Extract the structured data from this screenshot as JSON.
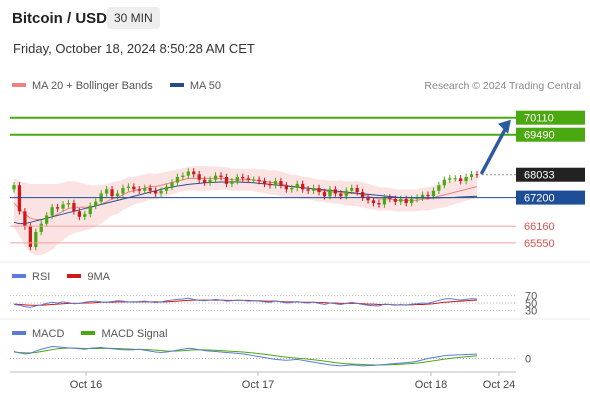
{
  "header": {
    "title": "Bitcoin / USD",
    "timeframe": "30 MIN",
    "datetime": "Friday, October 18, 2024 8:50:28 AM CET",
    "credit": "Research © 2024 Trading Central"
  },
  "colors": {
    "bollinger": "#f08080",
    "bollinger_band_fill": "#fbd9d9",
    "ma50": "#2b4c8c",
    "resistance": "#4aa810",
    "support": "#e35050",
    "pivot": "#1f4e99",
    "current": "#222222",
    "arrow": "#2c5aa0",
    "rsi": "#5b7bd5",
    "rsi_ma": "#d01818",
    "macd": "#5b7bd5",
    "macd_signal": "#4aa810",
    "candle_up": "#4aa810",
    "candle_down": "#d01818"
  },
  "chart_data": [
    {
      "type": "candlestick",
      "legend": [
        {
          "name": "MA 20 + Bollinger Bands",
          "color": "#f08080"
        },
        {
          "name": "MA 50",
          "color": "#2b4c8c"
        }
      ],
      "legend_placement": "top-left",
      "x_ticks": [
        "Oct 16",
        "Oct 17",
        "Oct 18",
        "Oct 24"
      ],
      "ylim": [
        65000,
        70900
      ],
      "levels": [
        {
          "value": 70110,
          "label": "70110",
          "kind": "resistance"
        },
        {
          "value": 69490,
          "label": "69490",
          "kind": "resistance"
        },
        {
          "value": 68033,
          "label": "68033",
          "kind": "current"
        },
        {
          "value": 67200,
          "label": "67200",
          "kind": "pivot"
        },
        {
          "value": 66160,
          "label": "66160",
          "kind": "support"
        },
        {
          "value": 65550,
          "label": "65550",
          "kind": "support"
        }
      ],
      "forecast_arrow": {
        "from": 68033,
        "to": 70110,
        "direction": "up"
      },
      "close": [
        67650,
        66700,
        66150,
        65400,
        65950,
        66250,
        66550,
        66850,
        66800,
        66950,
        67000,
        66700,
        66500,
        66600,
        66900,
        67050,
        67350,
        67500,
        67250,
        67350,
        67550,
        67600,
        67500,
        67450,
        67550,
        67450,
        67350,
        67450,
        67600,
        67750,
        67950,
        68000,
        68150,
        68050,
        67850,
        67750,
        67850,
        68000,
        67950,
        67700,
        67800,
        67950,
        67900,
        67850,
        67850,
        67800,
        67700,
        67650,
        67800,
        67650,
        67500,
        67550,
        67700,
        67500,
        67450,
        67550,
        67400,
        67250,
        67500,
        67350,
        67250,
        67450,
        67550,
        67400,
        67200,
        67100,
        67000,
        66950,
        67200,
        67150,
        67050,
        67150,
        67000,
        67150,
        67200,
        67300,
        67250,
        67450,
        67650,
        67850,
        67900,
        67900,
        67800,
        67950,
        68050,
        68033
      ],
      "open": [
        67500,
        67650,
        66700,
        66150,
        65400,
        65950,
        66250,
        66550,
        66850,
        66800,
        66950,
        67000,
        66700,
        66500,
        66600,
        66900,
        67050,
        67350,
        67500,
        67250,
        67350,
        67550,
        67600,
        67500,
        67450,
        67550,
        67450,
        67350,
        67450,
        67600,
        67750,
        67950,
        68000,
        68150,
        68050,
        67850,
        67750,
        67850,
        68000,
        67950,
        67700,
        67800,
        67950,
        67900,
        67850,
        67850,
        67800,
        67700,
        67650,
        67800,
        67650,
        67500,
        67550,
        67700,
        67500,
        67450,
        67550,
        67400,
        67250,
        67500,
        67350,
        67250,
        67450,
        67550,
        67400,
        67200,
        67100,
        67000,
        66950,
        67200,
        67150,
        67050,
        67150,
        67000,
        67150,
        67200,
        67300,
        67250,
        67450,
        67650,
        67850,
        67900,
        67900,
        67800,
        67950,
        68050
      ],
      "ma20": [
        67000,
        66800,
        66600,
        66450,
        66400,
        66400,
        66450,
        66500,
        66600,
        66700,
        66800,
        66850,
        66850,
        66850,
        66850,
        66900,
        66950,
        67050,
        67150,
        67200,
        67300,
        67400,
        67450,
        67500,
        67550,
        67600,
        67600,
        67650,
        67700,
        67750,
        67800,
        67850,
        67900,
        67900,
        67900,
        67900,
        67900,
        67900,
        67900,
        67900,
        67850,
        67850,
        67850,
        67850,
        67850,
        67800,
        67800,
        67750,
        67750,
        67700,
        67650,
        67600,
        67600,
        67550,
        67550,
        67500,
        67450,
        67450,
        67400,
        67400,
        67400,
        67350,
        67350,
        67350,
        67300,
        67250,
        67200,
        67150,
        67150,
        67150,
        67100,
        67100,
        67100,
        67100,
        67100,
        67150,
        67150,
        67200,
        67250,
        67300,
        67350,
        67400,
        67450,
        67500,
        67550,
        67600
      ],
      "ma50": [
        66300,
        66250,
        66250,
        66300,
        66350,
        66400,
        66450,
        66500,
        66550,
        66600,
        66650,
        66700,
        66750,
        66800,
        66850,
        66900,
        66950,
        67000,
        67050,
        67100,
        67150,
        67200,
        67250,
        67300,
        67350,
        67400,
        67450,
        67500,
        67550,
        67580,
        67620,
        67650,
        67680,
        67700,
        67720,
        67740,
        67750,
        67760,
        67770,
        67770,
        67770,
        67770,
        67760,
        67750,
        67740,
        67720,
        67700,
        67680,
        67660,
        67640,
        67620,
        67600,
        67580,
        67560,
        67540,
        67520,
        67500,
        67480,
        67460,
        67440,
        67420,
        67400,
        67380,
        67360,
        67340,
        67320,
        67300,
        67280,
        67260,
        67240,
        67220,
        67200,
        67200,
        67190,
        67190,
        67190,
        67190,
        67190,
        67190,
        67200,
        67200,
        67210,
        67220,
        67230,
        67240,
        67250
      ],
      "bb_width": [
        900,
        1000,
        1150,
        1250,
        1300,
        1300,
        1250,
        1200,
        1100,
        1050,
        1000,
        950,
        900,
        850,
        800,
        750,
        700,
        650,
        600,
        600,
        550,
        550,
        500,
        500,
        500,
        480,
        460,
        450,
        440,
        430,
        420,
        420,
        430,
        440,
        450,
        450,
        440,
        430,
        420,
        410,
        400,
        400,
        400,
        400,
        410,
        420,
        430,
        440,
        450,
        450,
        440,
        430,
        420,
        410,
        400,
        400,
        400,
        400,
        410,
        420,
        430,
        440,
        450,
        460,
        460,
        450,
        440,
        430,
        420,
        410,
        400,
        400,
        400,
        400,
        400,
        410,
        420,
        430,
        440,
        450,
        450,
        440,
        430,
        420,
        410,
        400
      ]
    },
    {
      "type": "line",
      "legend": [
        {
          "name": "RSI",
          "color": "#5b7bd5"
        },
        {
          "name": "9MA",
          "color": "#d01818"
        }
      ],
      "y_ticks": [
        70,
        50,
        30
      ],
      "ylim": [
        20,
        80
      ],
      "rsi": [
        46,
        44,
        40,
        38,
        42,
        45,
        49,
        52,
        50,
        53,
        51,
        48,
        49,
        52,
        54,
        55,
        53,
        52,
        54,
        56,
        55,
        53,
        52,
        54,
        55,
        53,
        51,
        53,
        56,
        58,
        60,
        61,
        63,
        60,
        57,
        56,
        58,
        60,
        58,
        55,
        56,
        58,
        57,
        55,
        56,
        55,
        53,
        52,
        55,
        53,
        50,
        51,
        54,
        51,
        50,
        52,
        49,
        46,
        50,
        48,
        46,
        49,
        52,
        49,
        46,
        44,
        43,
        42,
        47,
        46,
        44,
        46,
        44,
        47,
        48,
        50,
        49,
        53,
        57,
        61,
        62,
        60,
        58,
        60,
        62,
        61
      ],
      "rsi_ma": [
        47,
        46,
        45,
        44,
        44,
        44,
        45,
        46,
        47,
        48,
        49,
        49,
        49,
        50,
        50,
        51,
        52,
        52,
        52,
        53,
        53,
        53,
        53,
        53,
        53,
        53,
        53,
        53,
        53,
        54,
        55,
        56,
        57,
        58,
        58,
        58,
        58,
        58,
        58,
        57,
        57,
        57,
        57,
        57,
        56,
        56,
        55,
        55,
        55,
        54,
        53,
        53,
        53,
        52,
        52,
        52,
        51,
        51,
        50,
        50,
        49,
        49,
        49,
        49,
        48,
        47,
        47,
        46,
        46,
        46,
        45,
        45,
        45,
        45,
        46,
        46,
        47,
        48,
        50,
        52,
        53,
        54,
        55,
        56,
        57,
        58
      ]
    },
    {
      "type": "line",
      "legend": [
        {
          "name": "MACD",
          "color": "#5b7bd5"
        },
        {
          "name": "MACD Signal",
          "color": "#4aa810"
        }
      ],
      "y_ticks": [
        0
      ],
      "ylim": [
        -250,
        400
      ],
      "macd": [
        150,
        120,
        100,
        110,
        160,
        200,
        230,
        260,
        250,
        240,
        230,
        220,
        210,
        200,
        220,
        230,
        240,
        220,
        210,
        200,
        190,
        185,
        190,
        200,
        180,
        160,
        140,
        130,
        140,
        160,
        180,
        200,
        220,
        210,
        190,
        170,
        160,
        150,
        140,
        130,
        120,
        110,
        100,
        80,
        60,
        40,
        20,
        0,
        -20,
        -30,
        -40,
        -30,
        -20,
        -40,
        -60,
        -80,
        -100,
        -120,
        -140,
        -150,
        -160,
        -150,
        -140,
        -150,
        -160,
        -155,
        -150,
        -140,
        -130,
        -120,
        -110,
        -100,
        -90,
        -80,
        -60,
        -30,
        0,
        20,
        40,
        60,
        70,
        75,
        80,
        85,
        90,
        95
      ],
      "macd_signal": [
        140,
        130,
        120,
        120,
        130,
        150,
        170,
        190,
        210,
        220,
        225,
        225,
        220,
        215,
        215,
        215,
        218,
        220,
        218,
        215,
        210,
        205,
        200,
        198,
        195,
        190,
        180,
        170,
        162,
        160,
        162,
        168,
        178,
        186,
        188,
        186,
        182,
        176,
        170,
        163,
        156,
        148,
        140,
        130,
        118,
        105,
        90,
        75,
        58,
        42,
        28,
        16,
        6,
        -3,
        -14,
        -28,
        -42,
        -58,
        -74,
        -90,
        -104,
        -114,
        -120,
        -126,
        -132,
        -137,
        -140,
        -141,
        -140,
        -136,
        -131,
        -125,
        -118,
        -110,
        -100,
        -86,
        -69,
        -51,
        -33,
        -15,
        0,
        14,
        27,
        38,
        48,
        57
      ]
    }
  ],
  "panels": {
    "price_legend": [
      "MA 20 + Bollinger Bands",
      "MA 50"
    ],
    "rsi_legend": [
      "RSI",
      "9MA"
    ],
    "macd_legend": [
      "MACD",
      "MACD Signal"
    ]
  }
}
